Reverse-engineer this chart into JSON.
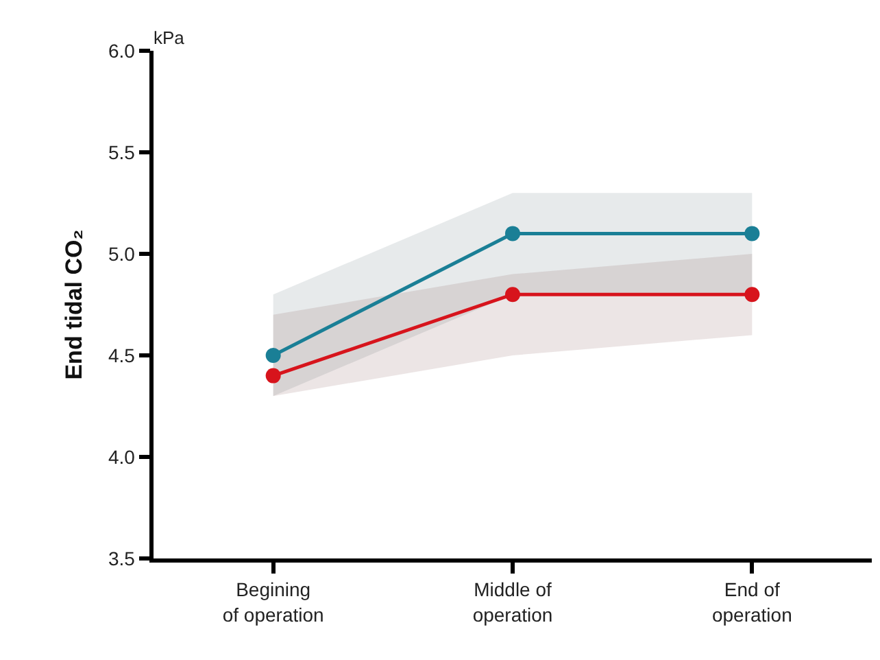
{
  "chart_data": {
    "type": "line",
    "ylabel": "End tidal CO₂",
    "annotations": [
      "kPa"
    ],
    "categories": [
      "Begining\nof operation",
      "Middle of\noperation",
      "End of\noperation"
    ],
    "series": [
      {
        "color": "#1a7f96",
        "values": [
          4.5,
          5.1,
          5.1
        ],
        "lower": [
          4.3,
          4.8,
          4.8
        ],
        "upper": [
          4.8,
          5.3,
          5.3
        ]
      },
      {
        "color": "#d7141c",
        "values": [
          4.4,
          4.8,
          4.8
        ],
        "lower": [
          4.3,
          4.5,
          4.6
        ],
        "upper": [
          4.7,
          4.9,
          5.0
        ]
      }
    ],
    "ylim": [
      3.5,
      6.0
    ],
    "yticks": [
      {
        "value": 3.5,
        "label": "3.5"
      },
      {
        "value": 4.0,
        "label": "4.0"
      },
      {
        "value": 4.5,
        "label": "4.5"
      },
      {
        "value": 5.0,
        "label": "5.0"
      },
      {
        "value": 5.5,
        "label": "5.5"
      },
      {
        "value": 6.0,
        "label": "6.0"
      }
    ],
    "marker": "circle",
    "line_style": "solid"
  }
}
